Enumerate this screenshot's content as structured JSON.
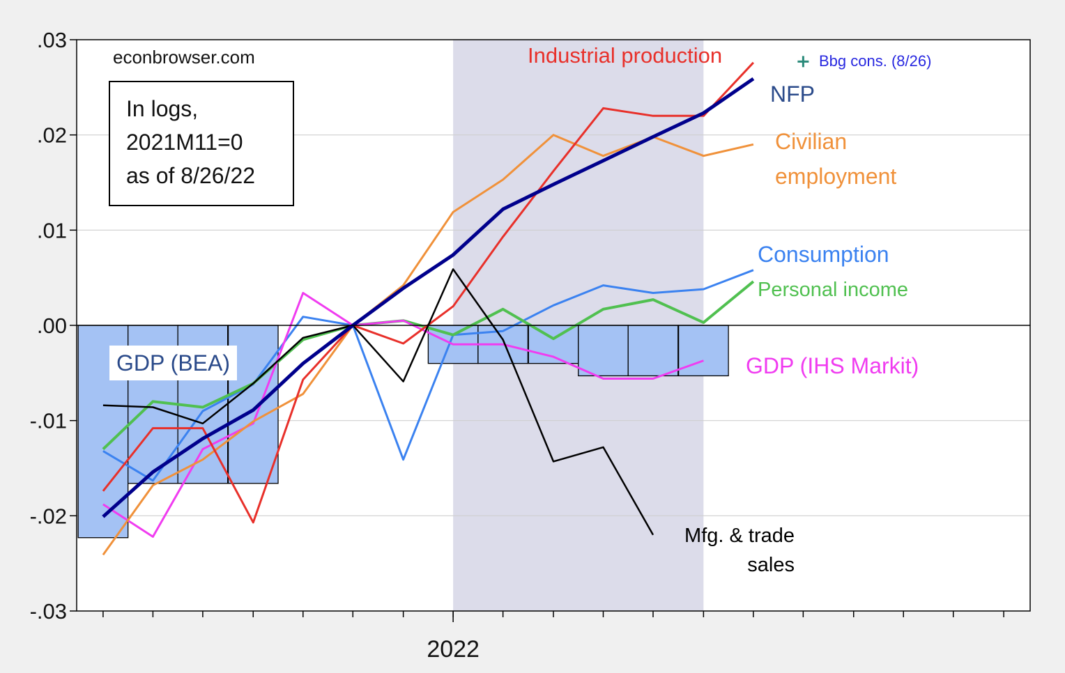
{
  "chart_data": {
    "type": "line",
    "source": "econbrowser.com",
    "note": [
      "In logs,",
      "2021M11=0",
      "as of 8/26/22"
    ],
    "x": [
      2021.417,
      2021.5,
      2021.583,
      2021.667,
      2021.75,
      2021.833,
      2021.917,
      2022,
      2022.083,
      2022.167,
      2022.25,
      2022.333,
      2022.417,
      2022.5,
      2022.583
    ],
    "xlim": [
      2021.373,
      2022.961
    ],
    "xticks": [
      {
        "value": 2022,
        "label": "2022"
      }
    ],
    "xminorticks": [
      2021.417,
      2021.5,
      2021.583,
      2021.667,
      2021.75,
      2021.833,
      2021.917,
      2022,
      2022.083,
      2022.167,
      2022.25,
      2022.333,
      2022.417,
      2022.5,
      2022.583,
      2022.667,
      2022.75,
      2022.833,
      2022.917
    ],
    "ylim": [
      -0.03,
      0.03
    ],
    "yticks": [
      {
        "value": -0.03,
        "label": "-.03"
      },
      {
        "value": -0.02,
        "label": "-.02"
      },
      {
        "value": -0.01,
        "label": "-.01"
      },
      {
        "value": 0,
        "label": ".00"
      },
      {
        "value": 0.01,
        "label": ".01"
      },
      {
        "value": 0.02,
        "label": ".02"
      },
      {
        "value": 0.03,
        "label": ".03"
      }
    ],
    "grid": true,
    "shade": [
      2022,
      2022.417
    ],
    "series": [
      {
        "name": "GDP (BEA)",
        "type": "bar",
        "color": "#a4c2f4",
        "values": [
          -0.0223,
          -0.0166,
          -0.0166,
          -0.0166,
          0,
          0,
          0,
          -0.004,
          -0.004,
          -0.004,
          -0.0053,
          -0.0053,
          -0.0053,
          null,
          null
        ]
      },
      {
        "name": "Consumption",
        "type": "line",
        "color": "#3b82f0",
        "linewidth": 3,
        "values": [
          -0.0132,
          -0.0163,
          -0.009,
          -0.0062,
          0.0009,
          0,
          -0.0141,
          -0.001,
          -0.0006,
          0.0021,
          0.0042,
          0.0034,
          0.0038,
          0.0058,
          null
        ]
      },
      {
        "name": "Personal income",
        "type": "line",
        "color": "#50c050",
        "linewidth": 4,
        "values": [
          -0.013,
          -0.008,
          -0.0086,
          -0.0061,
          -0.0015,
          0,
          0.0005,
          -0.001,
          0.0017,
          -0.0014,
          0.0017,
          0.0027,
          0.0003,
          0.0046,
          null
        ]
      },
      {
        "name": "GDP (IHS Markit)",
        "type": "line",
        "color": "#f03cf0",
        "linewidth": 3,
        "values": [
          -0.0188,
          -0.0222,
          -0.013,
          -0.0103,
          0.0034,
          0,
          0.0005,
          -0.002,
          -0.002,
          -0.0033,
          -0.0056,
          -0.0056,
          -0.0037,
          null,
          null
        ]
      },
      {
        "name": "Civilian employment",
        "type": "line",
        "color": "#f0913a",
        "linewidth": 3,
        "values": [
          -0.0241,
          -0.0168,
          -0.0141,
          -0.0101,
          -0.0072,
          0,
          0.0042,
          0.0119,
          0.0153,
          0.02,
          0.0178,
          0.0198,
          0.0178,
          0.019,
          null
        ]
      },
      {
        "name": "Industrial production",
        "type": "line",
        "color": "#e8302a",
        "linewidth": 3,
        "values": [
          -0.0174,
          -0.0108,
          -0.0108,
          -0.0207,
          -0.0057,
          0,
          -0.0019,
          0.002,
          0.0093,
          0.0162,
          0.0228,
          0.022,
          0.022,
          0.0276,
          null
        ]
      },
      {
        "name": "Mfg. & trade sales",
        "type": "line",
        "color": "#000000",
        "linewidth": 2.5,
        "values": [
          -0.0084,
          -0.0086,
          -0.0103,
          -0.0061,
          -0.0013,
          0,
          -0.0059,
          0.0059,
          -0.0015,
          -0.0143,
          -0.0128,
          -0.022,
          null,
          null,
          null
        ]
      },
      {
        "name": "NFP",
        "type": "line",
        "color": "#00008c",
        "linewidth": 5,
        "values": [
          -0.0201,
          -0.0154,
          -0.0119,
          -0.0089,
          -0.004,
          0,
          0.0039,
          0.0074,
          0.0122,
          0.0148,
          0.0173,
          0.0198,
          0.0223,
          0.0259,
          null
        ]
      },
      {
        "name": "Bbg cons. (8/26)",
        "type": "marker",
        "color": "#2a8a7a",
        "values": [
          null,
          null,
          null,
          null,
          null,
          null,
          null,
          null,
          null,
          null,
          null,
          null,
          null,
          null,
          0.0277
        ]
      }
    ]
  }
}
